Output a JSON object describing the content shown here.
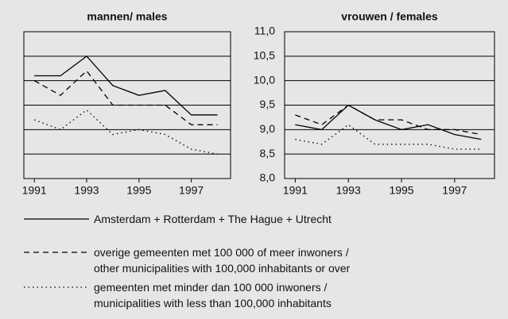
{
  "chart_data": [
    {
      "type": "line",
      "title": "mannen/ males",
      "x": [
        1991,
        1992,
        1993,
        1994,
        1995,
        1996,
        1997,
        1998
      ],
      "xlim": [
        1990.6,
        1998.5
      ],
      "xticks": [
        1991,
        1993,
        1995,
        1997
      ],
      "ylim": [
        8,
        11
      ],
      "yticks": [
        8,
        8.5,
        9,
        9.5,
        10,
        10.5,
        11
      ],
      "grid": true,
      "series": [
        {
          "name": "Amsterdam + Rotterdam + The Hague  + Utrecht",
          "color": "#000000",
          "style": "solid",
          "values": [
            10.1,
            10.1,
            10.5,
            9.9,
            9.7,
            9.8,
            9.3,
            9.3
          ]
        },
        {
          "name": "overige gemeenten met 100 000 of meer inwoners /\nother municipalities with 100,000 inhabitants or over",
          "color": "#000000",
          "style": "dashed",
          "values": [
            10.0,
            9.7,
            10.2,
            9.5,
            9.5,
            9.5,
            9.1,
            9.1
          ]
        },
        {
          "name": "gemeenten met minder dan 100 000 inwoners /\nmunicipalities with less than 100,000 inhabitants",
          "color": "#000000",
          "style": "dotted",
          "values": [
            9.2,
            9.0,
            9.4,
            8.9,
            9.0,
            8.9,
            8.6,
            8.5
          ]
        }
      ]
    },
    {
      "type": "line",
      "title": "vrouwen / females",
      "x": [
        1991,
        1992,
        1993,
        1994,
        1995,
        1996,
        1997,
        1998
      ],
      "xlim": [
        1990.6,
        1998.5
      ],
      "xticks": [
        1991,
        1993,
        1995,
        1997
      ],
      "ylim": [
        8,
        11
      ],
      "yticks": [
        {
          "value": 8,
          "label": "8,0"
        },
        {
          "value": 8.5,
          "label": "8,5"
        },
        {
          "value": 9,
          "label": "9,0"
        },
        {
          "value": 9.5,
          "label": "9,5"
        },
        {
          "value": 10,
          "label": "10,0"
        },
        {
          "value": 10.5,
          "label": "10,5"
        },
        {
          "value": 11,
          "label": "11,0"
        }
      ],
      "grid": true,
      "series": [
        {
          "color": "#000000",
          "style": "solid",
          "values": [
            9.1,
            9.0,
            9.5,
            9.2,
            9.0,
            9.1,
            8.9,
            8.8
          ]
        },
        {
          "color": "#000000",
          "style": "dashed",
          "values": [
            9.3,
            9.1,
            9.5,
            9.2,
            9.2,
            9.0,
            9.0,
            8.9
          ]
        },
        {
          "color": "#000000",
          "style": "dotted",
          "values": [
            8.8,
            8.7,
            9.1,
            8.7,
            8.7,
            8.7,
            8.6,
            8.6
          ]
        }
      ]
    }
  ]
}
